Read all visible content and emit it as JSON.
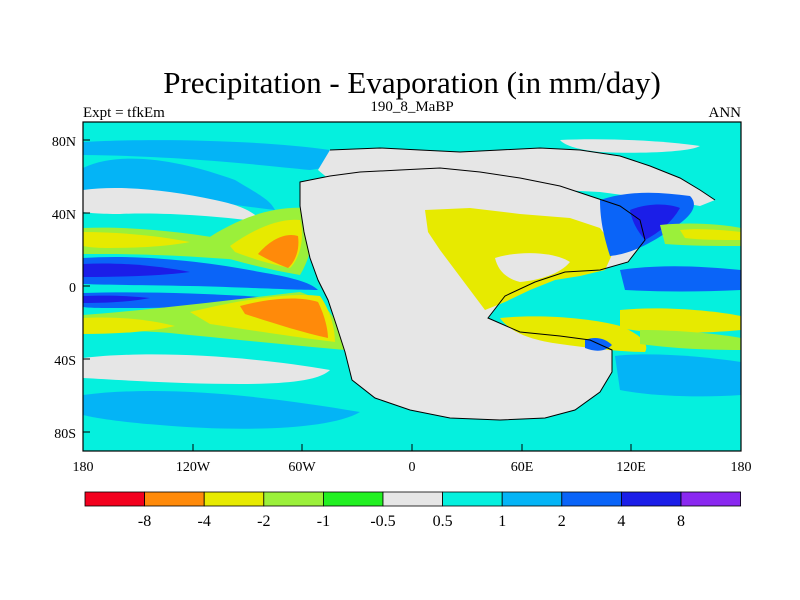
{
  "title": "Precipitation - Evaporation (in mm/day)",
  "subtitle_left": "Expt = tfkEm",
  "subtitle_center": "190_8_MaBP",
  "subtitle_right": "ANN",
  "map": {
    "projection": "cylindrical-equidistant",
    "lon_range": [
      -180,
      180
    ],
    "lat_range": [
      -90,
      90
    ],
    "x_ticks": [
      "180",
      "120W",
      "60W",
      "0",
      "60E",
      "120E",
      "180"
    ],
    "y_ticks": [
      "80N",
      "40N",
      "0",
      "40S",
      "80S"
    ],
    "colors": {
      "red": "#f2001e",
      "orange": "#ff8a0a",
      "yellow": "#e7ea00",
      "light_green": "#9bf03a",
      "green": "#22f022",
      "gray": "#e6e6e6",
      "cyan": "#05f0de",
      "light_blue": "#04b4f6",
      "blue": "#0a64f8",
      "dark_blue": "#1b1ee8",
      "purple": "#8a28f0",
      "coastline": "#000000"
    }
  },
  "colorbar": {
    "labels": [
      "-8",
      "-4",
      "-2",
      "-1",
      "-0.5",
      "0.5",
      "1",
      "2",
      "4",
      "8"
    ],
    "colors": [
      "#f2001e",
      "#ff8a0a",
      "#e7ea00",
      "#9bf03a",
      "#22f022",
      "#e6e6e6",
      "#05f0de",
      "#04b4f6",
      "#0a64f8",
      "#1b1ee8",
      "#8a28f0"
    ]
  }
}
